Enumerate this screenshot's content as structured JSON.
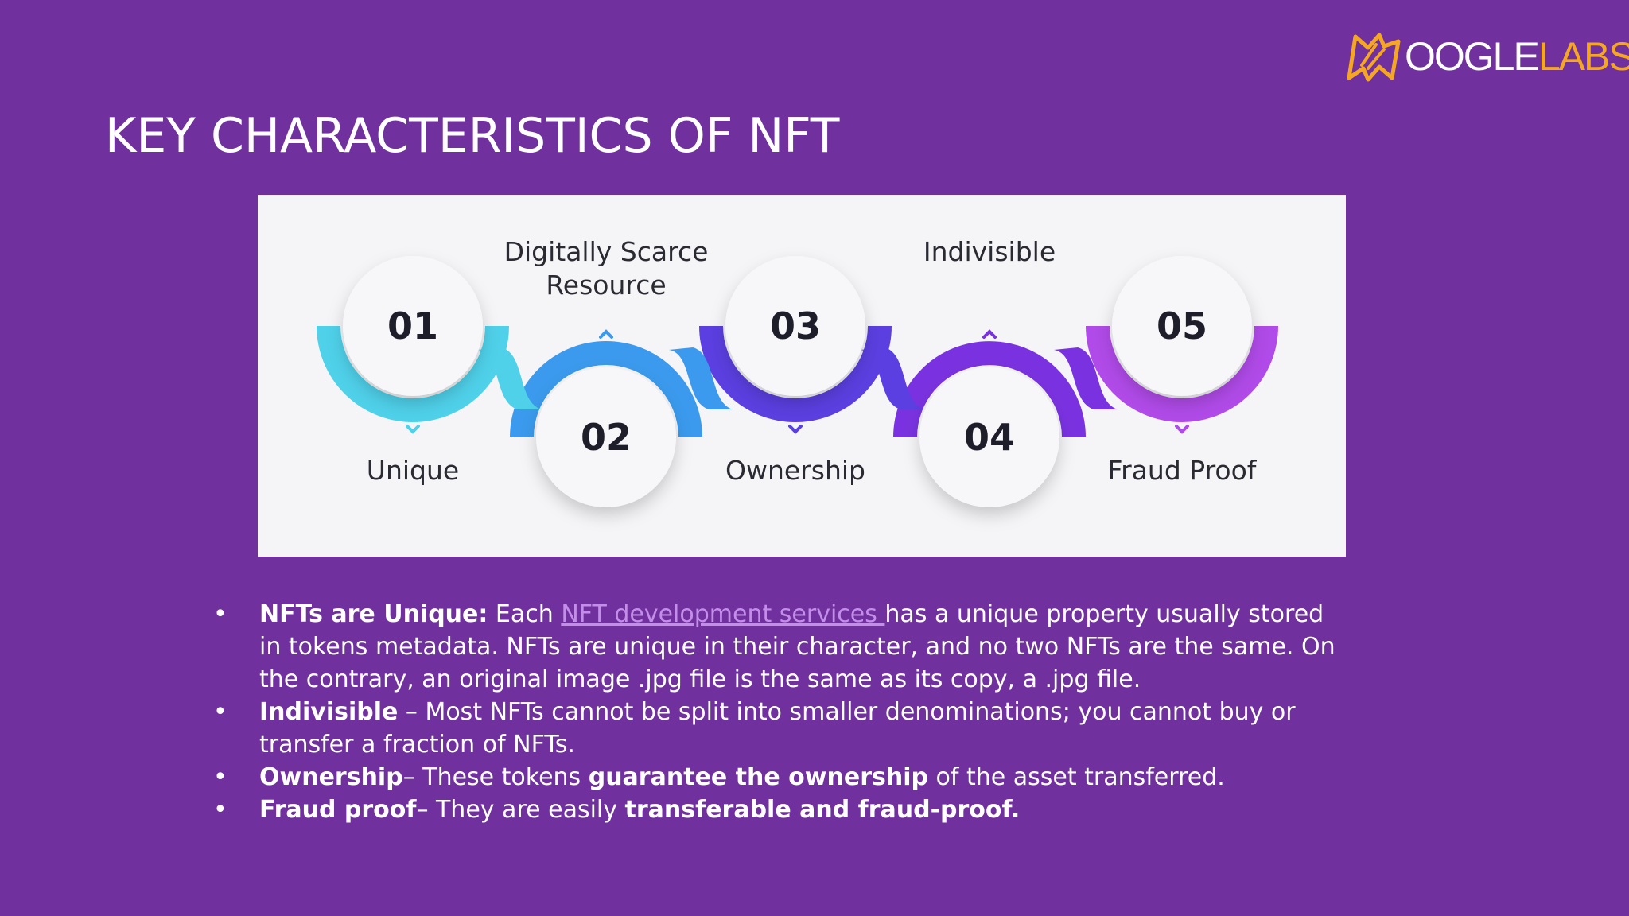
{
  "slide": {
    "title": "KEY CHARACTERISTICS OF NFT"
  },
  "logo": {
    "text_white": "OOGLE",
    "text_orange": "LABS",
    "colors": {
      "orange": "#f5a623",
      "white": "#ffffff"
    }
  },
  "infographic": {
    "steps": [
      {
        "number": "01",
        "label": "Unique",
        "label_position": "bottom",
        "color": "#4fd1ea"
      },
      {
        "number": "02",
        "label": "Digitally Scarce",
        "label2": "Resource",
        "label_position": "top",
        "color": "#3b9aed"
      },
      {
        "number": "03",
        "label": "Ownership",
        "label_position": "bottom",
        "color": "#5b3fe0"
      },
      {
        "number": "04",
        "label": "Indivisible",
        "label_position": "top",
        "color": "#7a32e0"
      },
      {
        "number": "05",
        "label": "Fraud Proof",
        "label_position": "bottom",
        "color": "#b04ae8"
      }
    ]
  },
  "bullets": [
    {
      "lead": "NFTs are Unique:",
      "pre_link": " Each ",
      "link": "NFT development services ",
      "text": "has a unique property usually stored in tokens metadata. NFTs are unique in their character, and no two NFTs are the same. On the contrary, an original image .jpg file is the same as its copy, a .jpg file."
    },
    {
      "lead": "Indivisible",
      "text": " – Most NFTs cannot be split into smaller denominations; you cannot buy or transfer a fraction of NFTs."
    },
    {
      "lead": "Ownership",
      "text": "– These tokens ",
      "bold2": "guarantee the ownership",
      "text2": " of the asset transferred."
    },
    {
      "lead": "Fraud proof",
      "text": "– They are easily ",
      "bold2": "transferable and fraud-proof."
    }
  ],
  "colors": {
    "background": "#70309d",
    "link": "#c38ee8"
  }
}
